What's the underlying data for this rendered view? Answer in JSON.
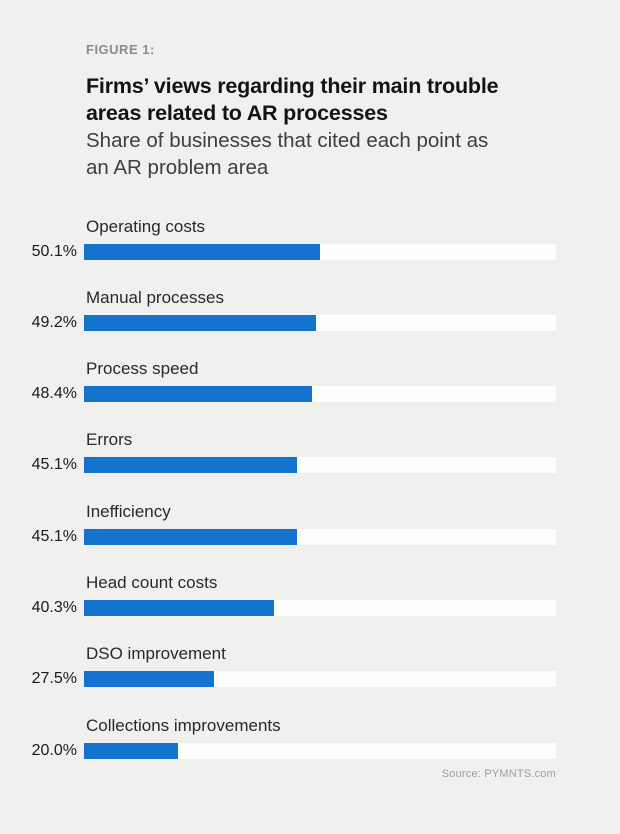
{
  "page": {
    "figure_label": "FIGURE 1:",
    "title_lines": [
      "Firms’ views regarding their main trouble",
      "areas related to AR processes"
    ],
    "subtitle_lines": [
      "Share of businesses that cited each point as",
      "an AR problem area"
    ],
    "source": "Source: PYMNTS.com"
  },
  "colors": {
    "background": "#F0F0EE",
    "bar": "#1573D0",
    "track": "#FDFDFC",
    "title_text": "#131314",
    "subtitle_text": "#3E3E42",
    "figure_label_text": "#8A8B8F",
    "source_text": "#9C9C9E"
  },
  "chart_data": {
    "type": "bar",
    "orientation": "horizontal",
    "title": "Firms’ views regarding their main trouble areas related to AR processes",
    "subtitle": "Share of businesses that cited each point as an AR problem area",
    "figure_label": "FIGURE 1:",
    "categories": [
      "Operating costs",
      "Manual processes",
      "Process speed",
      "Errors",
      "Inefficiency",
      "Head count costs",
      "DSO improvement",
      "Collections improvements"
    ],
    "values": [
      50.1,
      49.2,
      48.4,
      45.1,
      45.1,
      40.3,
      27.5,
      20.0
    ],
    "value_labels": [
      "50.1%",
      "49.2%",
      "48.4%",
      "45.1%",
      "45.1%",
      "40.3%",
      "27.5%",
      "20.0%"
    ],
    "xlim": [
      0,
      100
    ],
    "grid": false,
    "legend": false,
    "value_label_position": "left-of-bar",
    "source": "Source: PYMNTS.com"
  }
}
